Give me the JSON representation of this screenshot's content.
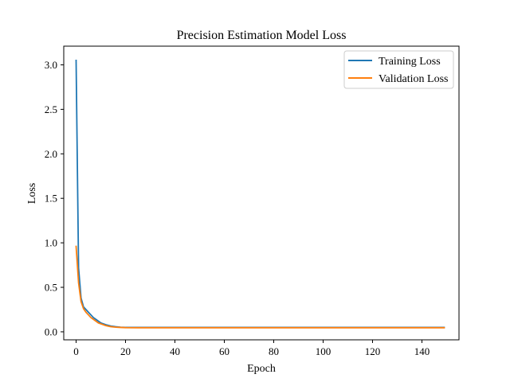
{
  "chart_data": {
    "type": "line",
    "title": "Precision Estimation Model Loss",
    "xlabel": "Epoch",
    "ylabel": "Loss",
    "xlim": [
      -5,
      155
    ],
    "ylim": [
      -0.09,
      3.21
    ],
    "xticks": [
      0,
      20,
      40,
      60,
      80,
      100,
      120,
      140
    ],
    "yticks": [
      0.0,
      0.5,
      1.0,
      1.5,
      2.0,
      2.5,
      3.0
    ],
    "ytick_labels": [
      "0.0",
      "0.5",
      "1.0",
      "1.5",
      "2.0",
      "2.5",
      "3.0"
    ],
    "grid": false,
    "legend_position": "top-right",
    "series": [
      {
        "name": "Training Loss",
        "color": "#1f77b4",
        "x": [
          0,
          1,
          2,
          3,
          4,
          5,
          6,
          7,
          8,
          9,
          10,
          12,
          14,
          16,
          18,
          20,
          25,
          30,
          40,
          60,
          80,
          100,
          120,
          140,
          149
        ],
        "y": [
          3.05,
          0.72,
          0.38,
          0.28,
          0.25,
          0.22,
          0.19,
          0.16,
          0.14,
          0.12,
          0.1,
          0.08,
          0.065,
          0.057,
          0.052,
          0.05,
          0.049,
          0.049,
          0.049,
          0.049,
          0.049,
          0.049,
          0.049,
          0.049,
          0.049
        ]
      },
      {
        "name": "Validation Loss",
        "color": "#ff7f0e",
        "x": [
          0,
          1,
          2,
          3,
          4,
          5,
          6,
          7,
          8,
          9,
          10,
          12,
          14,
          16,
          18,
          20,
          25,
          30,
          40,
          60,
          80,
          100,
          120,
          140,
          149
        ],
        "y": [
          0.96,
          0.55,
          0.34,
          0.26,
          0.22,
          0.19,
          0.16,
          0.14,
          0.12,
          0.1,
          0.09,
          0.07,
          0.058,
          0.052,
          0.049,
          0.047,
          0.046,
          0.046,
          0.046,
          0.046,
          0.046,
          0.046,
          0.046,
          0.046,
          0.046
        ]
      }
    ]
  }
}
